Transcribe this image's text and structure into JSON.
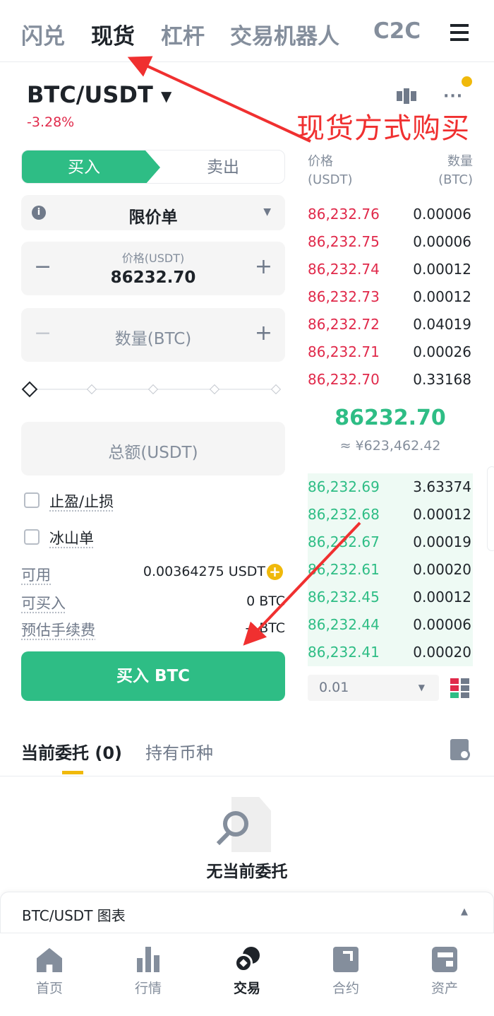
{
  "top_tabs": [
    "闪兑",
    "现货",
    "杠杆",
    "交易机器人",
    "C2C"
  ],
  "active_top_tab": 1,
  "pair": {
    "name": "BTC/USDT",
    "change": "-3.28%"
  },
  "side_tabs": {
    "buy": "买入",
    "sell": "卖出"
  },
  "order_type": "限价单",
  "price": {
    "label": "价格(USDT)",
    "value": "86232.70"
  },
  "amount": {
    "placeholder": "数量(BTC)"
  },
  "total": {
    "placeholder": "总额(USDT)"
  },
  "options": [
    "止盈/止损",
    "冰山单"
  ],
  "info": [
    {
      "label": "可用",
      "value": "0.00364275 USDT"
    },
    {
      "label": "可买入",
      "value": "0 BTC"
    },
    {
      "label": "预估手续费",
      "value": "-- BTC"
    }
  ],
  "buy_button": "买入 BTC",
  "orderbook": {
    "price_header": "价格",
    "price_unit": "(USDT)",
    "qty_header": "数量",
    "qty_unit": "(BTC)",
    "asks": [
      [
        "86,232.76",
        "0.00006"
      ],
      [
        "86,232.75",
        "0.00006"
      ],
      [
        "86,232.74",
        "0.00012"
      ],
      [
        "86,232.73",
        "0.00012"
      ],
      [
        "86,232.72",
        "0.04019"
      ],
      [
        "86,232.71",
        "0.00026"
      ],
      [
        "86,232.70",
        "0.33168"
      ]
    ],
    "last_price": "86232.70",
    "last_price_cny": "≈ ¥623,462.42",
    "bids": [
      [
        "86,232.69",
        "3.63374"
      ],
      [
        "86,232.68",
        "0.00012"
      ],
      [
        "86,232.67",
        "0.00019"
      ],
      [
        "86,232.61",
        "0.00020"
      ],
      [
        "86,232.45",
        "0.00012"
      ],
      [
        "86,232.44",
        "0.00006"
      ],
      [
        "86,232.41",
        "0.00020"
      ]
    ],
    "depth": "0.01"
  },
  "order_tabs": [
    "当前委托 (0)",
    "持有币种"
  ],
  "empty_text": "无当前委托",
  "chart_bar": "BTC/USDT 图表",
  "bottom_nav": [
    "首页",
    "行情",
    "交易",
    "合约",
    "资产"
  ],
  "active_nav": 2,
  "annotation": "现货方式购买",
  "colors": {
    "green": "#2ebd85",
    "red": "#e0294a",
    "yellow": "#f0b90b",
    "annotation": "#f03030"
  }
}
